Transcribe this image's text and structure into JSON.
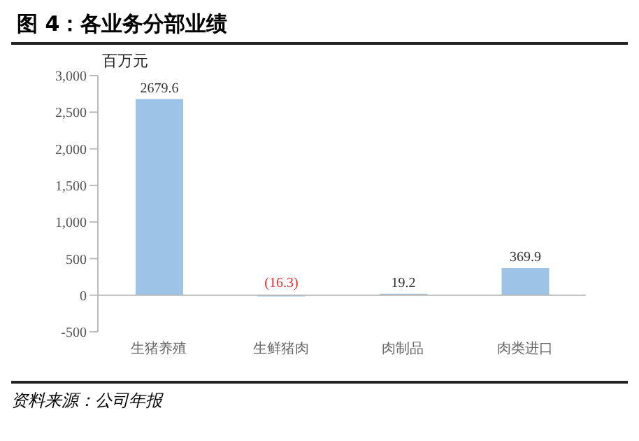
{
  "chart_data": {
    "type": "bar",
    "title": "图 4：各业务分部业绩",
    "ylabel": "百万元",
    "annotations": [
      "资料来源：公司年报"
    ],
    "categories": [
      "生猪养殖",
      "生鲜猪肉",
      "肉制品",
      "肉类进口"
    ],
    "values": [
      2679.6,
      -16.3,
      19.2,
      369.9
    ],
    "value_labels": [
      "2679.6",
      "(16.3)",
      "19.2",
      "369.9"
    ],
    "color": "#9dc3e6",
    "ylim": [
      -500,
      3000
    ],
    "yticks": [
      -500,
      0,
      500,
      {
        "value": 1000,
        "label": "1,000"
      },
      {
        "value": 1500,
        "label": "1,500"
      },
      {
        "value": 2000,
        "label": "2,000"
      },
      {
        "value": 2500,
        "label": "2,500"
      },
      {
        "value": 3000,
        "label": "3,000"
      }
    ]
  }
}
